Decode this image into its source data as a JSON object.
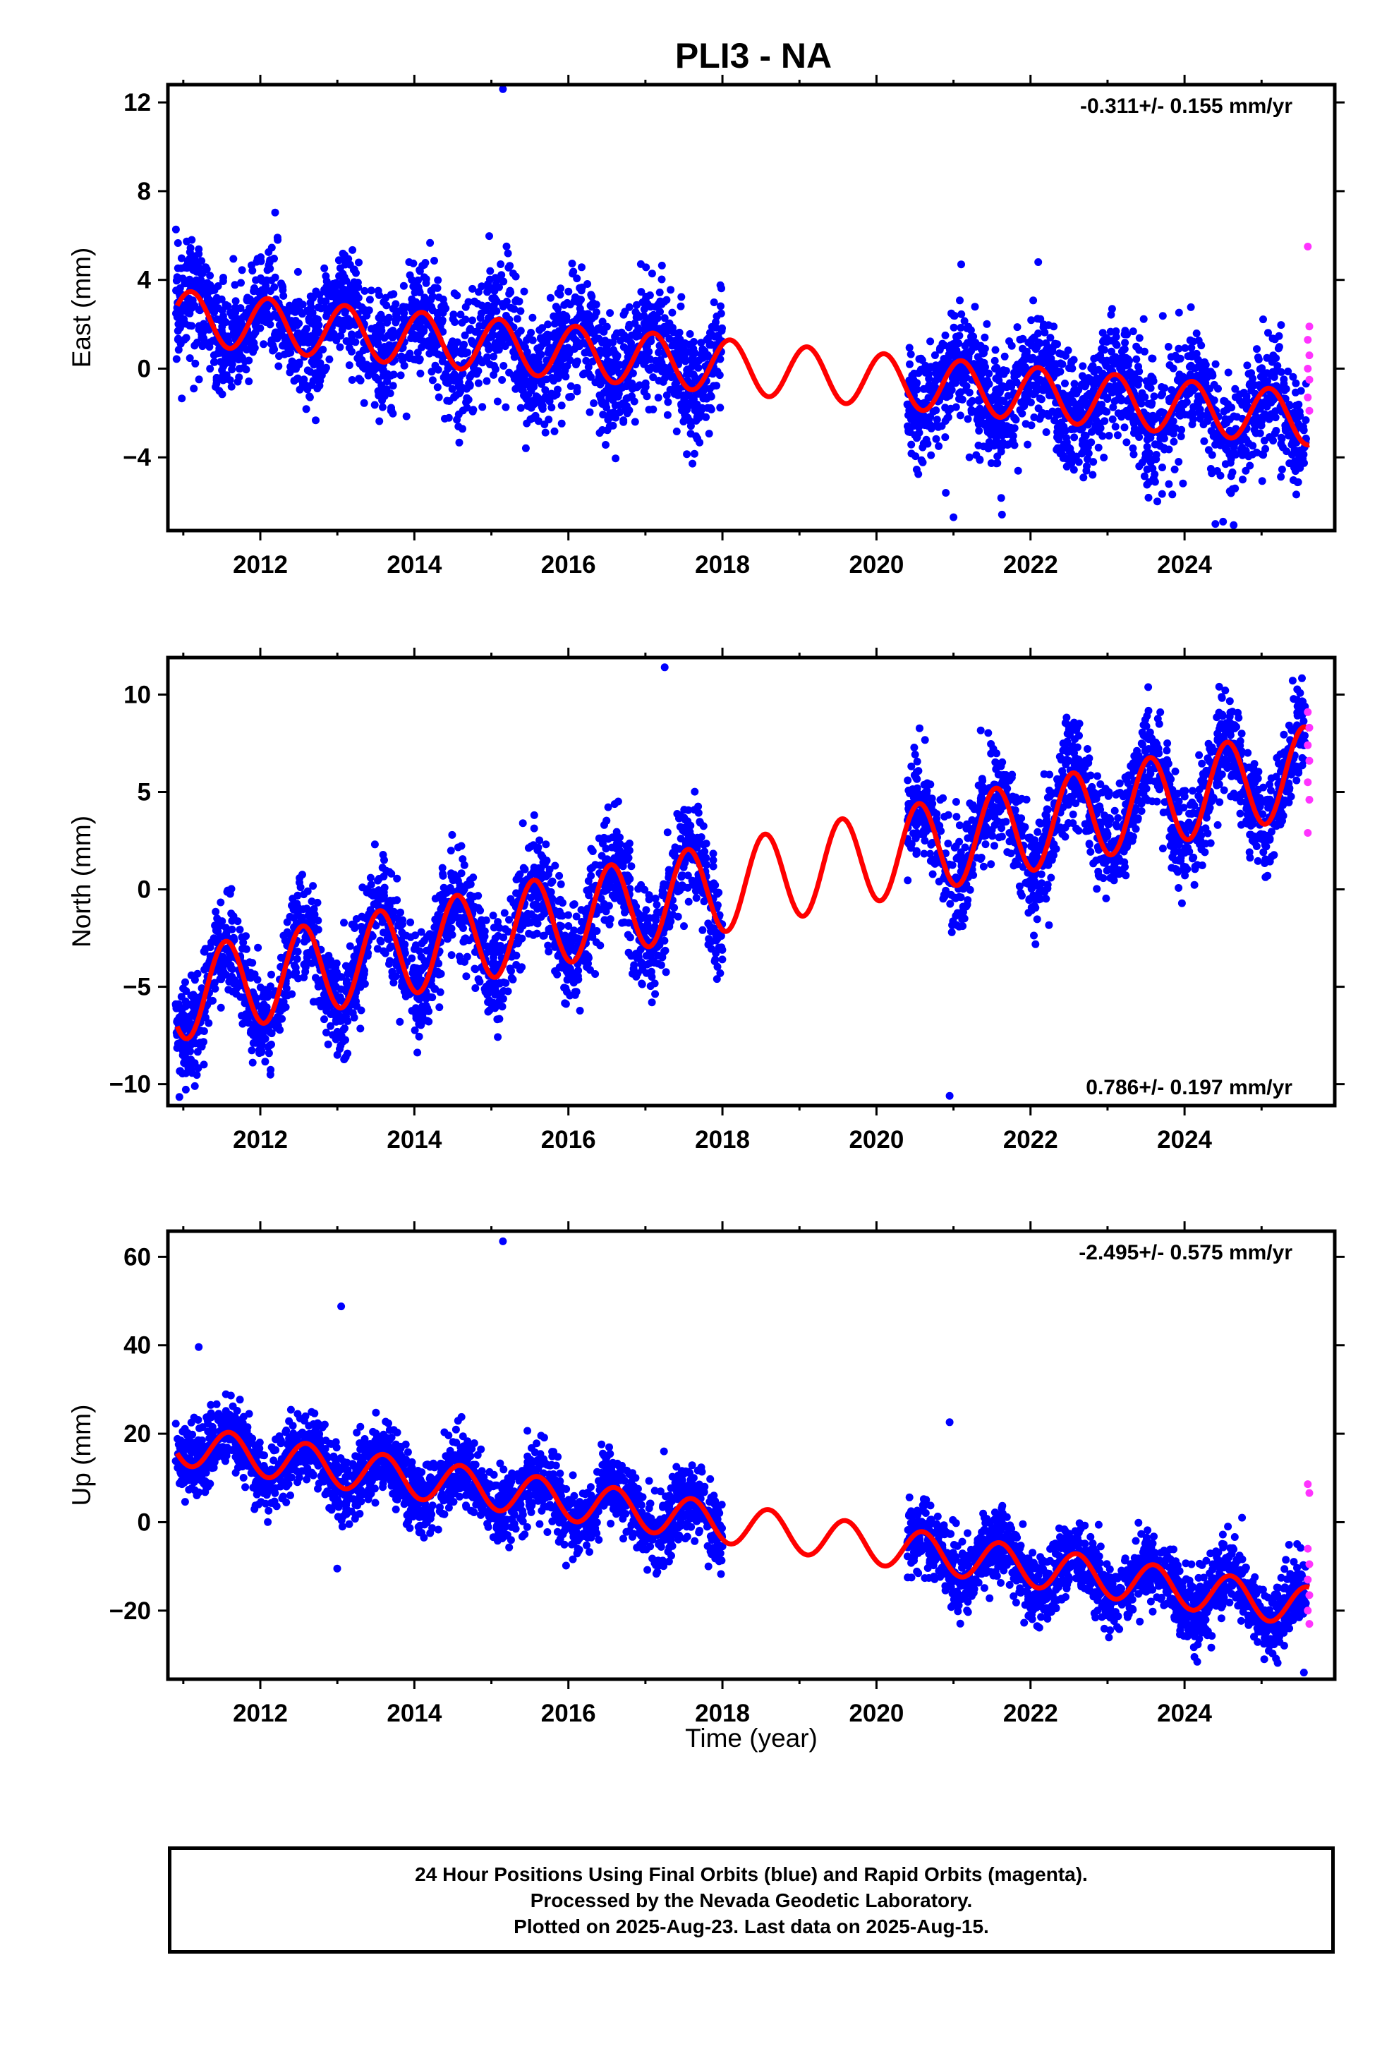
{
  "chart_data": {
    "type": "scatter",
    "title": "PLI3 - NA",
    "xlabel": "Time (year)",
    "xlim": [
      2010.8,
      2025.95
    ],
    "x_ticks": [
      2012,
      2014,
      2016,
      2018,
      2020,
      2022,
      2024
    ],
    "x_tick_labels": [
      "2012",
      "2014",
      "2016",
      "2018",
      "2020",
      "2022",
      "2024"
    ],
    "data_segments": [
      [
        2010.9,
        2018.0
      ],
      [
        2020.4,
        2025.58
      ]
    ],
    "rapid_orbit_range": [
      2025.58,
      2025.65
    ],
    "colors": {
      "final_orbits": "#0000ff",
      "rapid_orbits": "#ff33ff",
      "model": "#ff0000"
    },
    "panels": [
      {
        "name": "east",
        "ylabel": "East (mm)",
        "ylim": [
          -7.3,
          12.8
        ],
        "y_ticks": [
          12,
          8,
          4,
          0,
          -4
        ],
        "y_tick_labels": [
          "12",
          "8",
          "4",
          "0",
          "−4"
        ],
        "rate_text": "-0.311+/- 0.155 mm/yr",
        "rate_position": "top-right",
        "model": {
          "offset": 2.3,
          "rate": -0.311,
          "amp": 1.2,
          "phase": 0.15
        },
        "scatter_sigma": 1.3,
        "outliers": [
          [
            2015.15,
            12.6
          ],
          [
            2021.0,
            -6.7
          ],
          [
            2020.9,
            -5.6
          ],
          [
            2024.4,
            -7.0
          ],
          [
            2024.5,
            -6.9
          ],
          [
            2021.1,
            4.7
          ],
          [
            2022.1,
            4.8
          ]
        ],
        "rapid_values": [
          5.5,
          1.9,
          1.3,
          0.6,
          0.0,
          -0.5,
          -1.3,
          -1.9
        ]
      },
      {
        "name": "north",
        "ylabel": "North (mm)",
        "ylim": [
          -11.1,
          11.9
        ],
        "y_ticks": [
          10,
          5,
          0,
          -5,
          -10
        ],
        "y_tick_labels": [
          "10",
          "5",
          "0",
          "−5",
          "−10"
        ],
        "rate_text": "0.786+/- 0.197 mm/yr",
        "rate_position": "bottom-right",
        "model": {
          "offset": -5.4,
          "rate": 0.786,
          "amp": 2.3,
          "phase": -0.3
        },
        "scatter_sigma": 1.3,
        "outliers": [
          [
            2017.25,
            11.4
          ],
          [
            2020.95,
            -10.6
          ],
          [
            2011.15,
            -10.1
          ],
          [
            2013.0,
            -8.5
          ],
          [
            2024.45,
            10.4
          ],
          [
            2022.5,
            8.2
          ]
        ],
        "rapid_values": [
          9.1,
          8.3,
          7.4,
          6.6,
          5.5,
          4.6,
          2.9
        ]
      },
      {
        "name": "up",
        "ylabel": "Up (mm)",
        "ylim": [
          -35.5,
          65.8
        ],
        "y_ticks": [
          60,
          40,
          20,
          0,
          -20
        ],
        "y_tick_labels": [
          "60",
          "40",
          "20",
          "0",
          "−20"
        ],
        "rate_text": "-2.495+/- 0.575 mm/yr",
        "rate_position": "top-right",
        "model": {
          "offset": 17.3,
          "rate": -2.495,
          "amp": 4.5,
          "phase": 0.65
        },
        "scatter_sigma": 4.0,
        "outliers": [
          [
            2015.15,
            63.5
          ],
          [
            2013.05,
            48.8
          ],
          [
            2011.2,
            39.6
          ],
          [
            2020.95,
            22.6
          ],
          [
            2025.55,
            -34.0
          ]
        ],
        "rapid_values": [
          8.6,
          6.6,
          -6.0,
          -9.5,
          -13.0,
          -16.5,
          -20.0,
          -23.0
        ]
      }
    ],
    "legend_lines": [
      "24 Hour Positions Using Final Orbits (blue) and Rapid Orbits (magenta).",
      "Processed by the Nevada Geodetic Laboratory.",
      "Plotted on 2025-Aug-23. Last data on 2025-Aug-15."
    ]
  }
}
